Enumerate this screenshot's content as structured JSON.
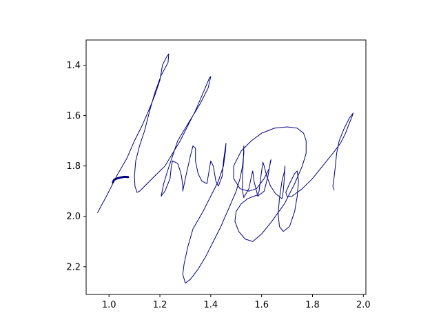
{
  "chart_data": {
    "type": "line",
    "title": "",
    "xlabel": "",
    "ylabel": "",
    "xlim": [
      0.91,
      2.01
    ],
    "ylim": [
      2.31,
      1.3
    ],
    "y_inverted": true,
    "grid": false,
    "x_ticks": [
      1.0,
      1.2,
      1.4,
      1.6,
      1.8,
      2.0
    ],
    "y_ticks": [
      1.4,
      1.6,
      1.8,
      2.0,
      2.2
    ],
    "x_tick_labels": [
      "1.0",
      "1.2",
      "1.4",
      "1.6",
      "1.8",
      "2.0"
    ],
    "y_tick_labels": [
      "1.4",
      "1.6",
      "1.8",
      "2.0",
      "2.2"
    ],
    "colors": {
      "line": "#00007f",
      "axes": "#000000",
      "background": "#ffffff"
    },
    "series": [
      {
        "points": [
          [
            0.955,
            1.985
          ],
          [
            0.99,
            1.92
          ],
          [
            1.03,
            1.84
          ],
          [
            1.07,
            1.77
          ],
          [
            1.1,
            1.7
          ],
          [
            1.13,
            1.64
          ],
          [
            1.16,
            1.57
          ],
          [
            1.18,
            1.52
          ],
          [
            1.2,
            1.46
          ],
          [
            1.21,
            1.4
          ],
          [
            1.225,
            1.37
          ],
          [
            1.235,
            1.355
          ],
          [
            1.232,
            1.39
          ],
          [
            1.205,
            1.44
          ],
          [
            1.18,
            1.51
          ],
          [
            1.16,
            1.58
          ],
          [
            1.14,
            1.66
          ],
          [
            1.12,
            1.72
          ],
          [
            1.105,
            1.78
          ],
          [
            1.1,
            1.84
          ],
          [
            1.102,
            1.88
          ],
          [
            1.11,
            1.905
          ],
          [
            1.12,
            1.9
          ],
          [
            1.15,
            1.87
          ],
          [
            1.18,
            1.84
          ],
          [
            1.22,
            1.8
          ],
          [
            1.25,
            1.75
          ],
          [
            1.28,
            1.7
          ],
          [
            1.31,
            1.64
          ],
          [
            1.34,
            1.58
          ],
          [
            1.37,
            1.51
          ],
          [
            1.395,
            1.45
          ],
          [
            1.4,
            1.445
          ],
          [
            1.39,
            1.49
          ],
          [
            1.36,
            1.55
          ],
          [
            1.33,
            1.6
          ],
          [
            1.3,
            1.65
          ],
          [
            1.27,
            1.7
          ],
          [
            1.25,
            1.76
          ],
          [
            1.23,
            1.82
          ],
          [
            1.215,
            1.87
          ],
          [
            1.205,
            1.92
          ],
          [
            1.22,
            1.9
          ],
          [
            1.24,
            1.85
          ],
          [
            1.245,
            1.8
          ],
          [
            1.25,
            1.78
          ],
          [
            1.27,
            1.79
          ],
          [
            1.28,
            1.82
          ],
          [
            1.285,
            1.84
          ],
          [
            1.29,
            1.88
          ],
          [
            1.29,
            1.9
          ],
          [
            1.3,
            1.85
          ],
          [
            1.32,
            1.76
          ],
          [
            1.33,
            1.72
          ],
          [
            1.34,
            1.73
          ],
          [
            1.34,
            1.78
          ],
          [
            1.35,
            1.83
          ],
          [
            1.365,
            1.86
          ],
          [
            1.385,
            1.87
          ],
          [
            1.39,
            1.84
          ],
          [
            1.4,
            1.78
          ],
          [
            1.41,
            1.8
          ],
          [
            1.42,
            1.86
          ],
          [
            1.43,
            1.88
          ],
          [
            1.445,
            1.84
          ],
          [
            1.45,
            1.78
          ],
          [
            1.46,
            1.71
          ],
          [
            1.458,
            1.74
          ],
          [
            1.45,
            1.8
          ],
          [
            1.43,
            1.86
          ],
          [
            1.4,
            1.92
          ],
          [
            1.37,
            1.98
          ],
          [
            1.33,
            2.05
          ],
          [
            1.31,
            2.12
          ],
          [
            1.295,
            2.19
          ],
          [
            1.29,
            2.23
          ],
          [
            1.3,
            2.265
          ],
          [
            1.32,
            2.25
          ],
          [
            1.35,
            2.21
          ],
          [
            1.38,
            2.16
          ],
          [
            1.41,
            2.1
          ],
          [
            1.44,
            2.04
          ],
          [
            1.47,
            1.97
          ],
          [
            1.5,
            1.9
          ],
          [
            1.515,
            1.85
          ],
          [
            1.525,
            1.8
          ],
          [
            1.53,
            1.75
          ],
          [
            1.53,
            1.72
          ],
          [
            1.528,
            1.78
          ],
          [
            1.525,
            1.84
          ],
          [
            1.525,
            1.9
          ],
          [
            1.53,
            1.925
          ],
          [
            1.55,
            1.89
          ],
          [
            1.56,
            1.84
          ],
          [
            1.565,
            1.82
          ],
          [
            1.57,
            1.86
          ],
          [
            1.585,
            1.92
          ],
          [
            1.61,
            1.9
          ],
          [
            1.625,
            1.84
          ],
          [
            1.635,
            1.78
          ],
          [
            1.637,
            1.775
          ],
          [
            1.63,
            1.81
          ],
          [
            1.61,
            1.85
          ],
          [
            1.58,
            1.89
          ],
          [
            1.55,
            1.9
          ],
          [
            1.515,
            1.89
          ],
          [
            1.49,
            1.85
          ],
          [
            1.49,
            1.8
          ],
          [
            1.52,
            1.74
          ],
          [
            1.56,
            1.7
          ],
          [
            1.6,
            1.67
          ],
          [
            1.65,
            1.65
          ],
          [
            1.7,
            1.645
          ],
          [
            1.74,
            1.65
          ],
          [
            1.765,
            1.67
          ],
          [
            1.775,
            1.7
          ],
          [
            1.775,
            1.75
          ],
          [
            1.76,
            1.8
          ],
          [
            1.73,
            1.87
          ],
          [
            1.69,
            1.95
          ],
          [
            1.64,
            2.02
          ],
          [
            1.6,
            2.07
          ],
          [
            1.565,
            2.1
          ],
          [
            1.535,
            2.09
          ],
          [
            1.51,
            2.06
          ],
          [
            1.495,
            2.02
          ],
          [
            1.5,
            1.98
          ],
          [
            1.52,
            1.95
          ],
          [
            1.545,
            1.93
          ],
          [
            1.57,
            1.92
          ],
          [
            1.585,
            1.915
          ],
          [
            1.59,
            1.9
          ],
          [
            1.595,
            1.86
          ],
          [
            1.6,
            1.82
          ],
          [
            1.605,
            1.785
          ],
          [
            1.61,
            1.8
          ],
          [
            1.62,
            1.84
          ],
          [
            1.635,
            1.88
          ],
          [
            1.655,
            1.91
          ],
          [
            1.68,
            1.93
          ],
          [
            1.685,
            1.9
          ],
          [
            1.69,
            1.84
          ],
          [
            1.692,
            1.8
          ],
          [
            1.69,
            1.82
          ],
          [
            1.68,
            1.86
          ],
          [
            1.67,
            1.93
          ],
          [
            1.665,
            1.99
          ],
          [
            1.67,
            2.04
          ],
          [
            1.685,
            2.06
          ],
          [
            1.71,
            2.04
          ],
          [
            1.73,
            1.98
          ],
          [
            1.74,
            1.92
          ],
          [
            1.745,
            1.86
          ],
          [
            1.74,
            1.82
          ],
          [
            1.73,
            1.83
          ],
          [
            1.71,
            1.87
          ],
          [
            1.695,
            1.905
          ],
          [
            1.7,
            1.92
          ],
          [
            1.72,
            1.92
          ],
          [
            1.76,
            1.89
          ],
          [
            1.8,
            1.85
          ],
          [
            1.84,
            1.8
          ],
          [
            1.88,
            1.75
          ],
          [
            1.91,
            1.71
          ],
          [
            1.93,
            1.67
          ],
          [
            1.945,
            1.63
          ],
          [
            1.955,
            1.605
          ],
          [
            1.96,
            1.59
          ],
          [
            1.945,
            1.61
          ],
          [
            1.925,
            1.65
          ],
          [
            1.905,
            1.7
          ],
          [
            1.895,
            1.75
          ],
          [
            1.89,
            1.8
          ],
          [
            1.885,
            1.845
          ],
          [
            1.88,
            1.88
          ],
          [
            1.885,
            1.895
          ]
        ]
      },
      {
        "points": [
          [
            1.015,
            1.865
          ],
          [
            1.02,
            1.855
          ],
          [
            1.03,
            1.85
          ],
          [
            1.045,
            1.846
          ],
          [
            1.06,
            1.843
          ],
          [
            1.075,
            1.844
          ]
        ]
      }
    ]
  }
}
